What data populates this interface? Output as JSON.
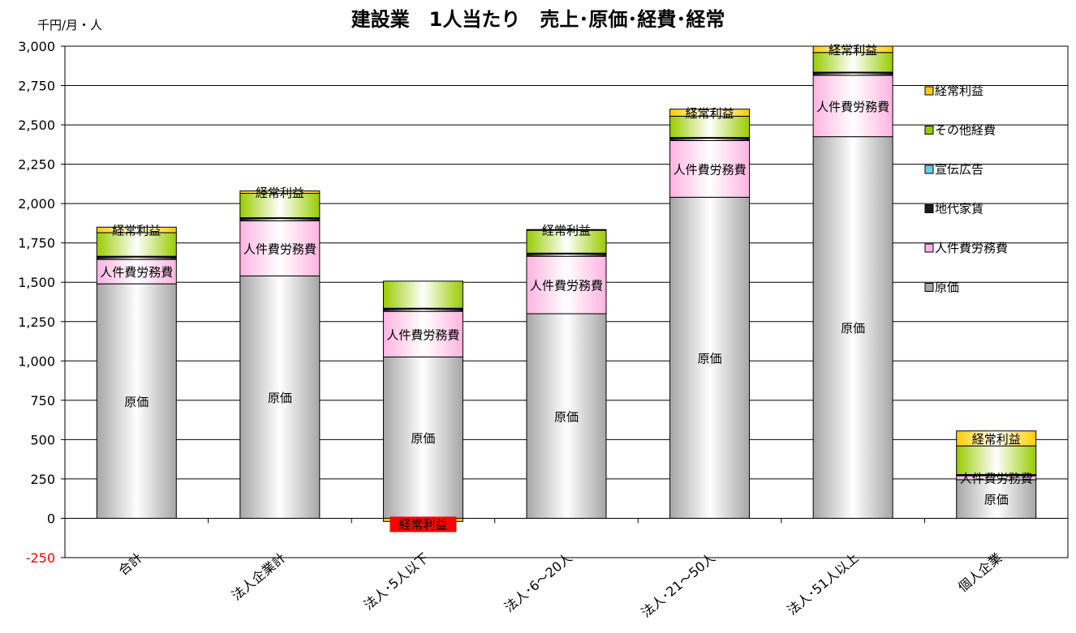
{
  "chart_data": {
    "type": "bar",
    "stacked": true,
    "title": "建設業　1人当たり　売上･原価･経費･経常",
    "unit_label": "千円/月・人",
    "ylim": [
      -250,
      3000
    ],
    "yticks": [
      "3,000",
      "2,750",
      "2,500",
      "2,250",
      "2,000",
      "1,750",
      "1,500",
      "1,250",
      "1,000",
      "750",
      "500",
      "250",
      "0",
      "-250"
    ],
    "ytick_values": [
      3000,
      2750,
      2500,
      2250,
      2000,
      1750,
      1500,
      1250,
      1000,
      750,
      500,
      250,
      0,
      -250
    ],
    "grid": true,
    "legend_position": "right",
    "categories": [
      "合計",
      "法人企業計",
      "法人･5人以下",
      "法人･6～20人",
      "法人･21～50人",
      "法人･51人以上",
      "個人企業"
    ],
    "series": [
      {
        "name": "原価",
        "color": "#a6a6a6",
        "values": [
          1490,
          1540,
          1025,
          1300,
          2040,
          2425,
          245
        ],
        "label": "原価"
      },
      {
        "name": "人件費労務費",
        "color": "#ffb3e0",
        "values": [
          155,
          350,
          290,
          365,
          360,
          390,
          25
        ],
        "label": "人件費労務費"
      },
      {
        "name": "地代家賃",
        "color": "#1a1a1a",
        "values": [
          15,
          15,
          15,
          15,
          15,
          15,
          5
        ],
        "label": ""
      },
      {
        "name": "宣伝広告",
        "color": "#66ccee",
        "values": [
          5,
          5,
          5,
          5,
          5,
          5,
          3
        ],
        "label": ""
      },
      {
        "name": "その他経費",
        "color": "#99cc00",
        "values": [
          150,
          155,
          172,
          145,
          135,
          125,
          182
        ],
        "label": ""
      },
      {
        "name": "経常利益",
        "color": "#ffcc00",
        "values": [
          35,
          15,
          -20,
          5,
          45,
          40,
          95
        ],
        "label": "経常利益"
      }
    ],
    "legend": [
      "経常利益",
      "その他経費",
      "宣伝広告",
      "地代家賃",
      "人件費労務費",
      "原価"
    ],
    "negative_label_color": "#ff0000"
  }
}
